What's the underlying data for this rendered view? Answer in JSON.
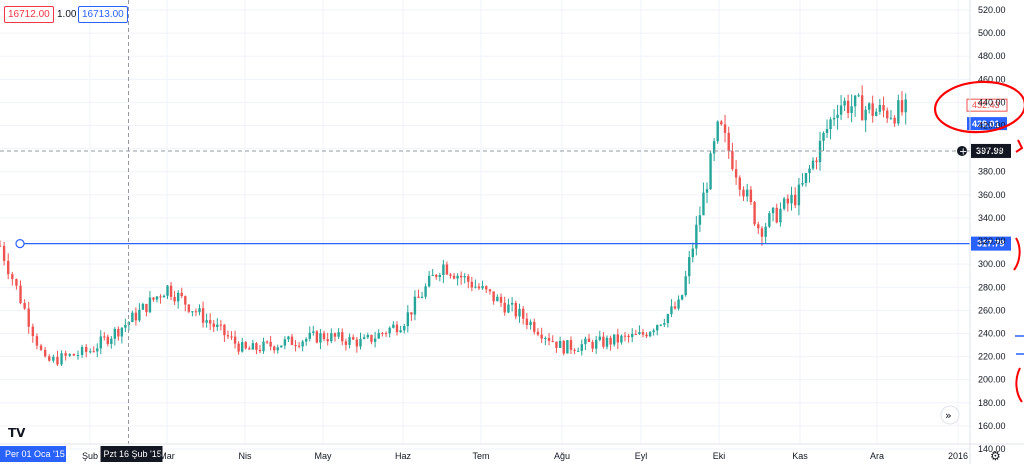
{
  "header": {
    "bid": "16712.00",
    "spread": "1.00",
    "ask": "16713.00"
  },
  "chart_data": {
    "type": "candlestick",
    "ylim": [
      130,
      530
    ],
    "y_ticks": [
      "520.00",
      "500.00",
      "480.00",
      "460.00",
      "440.00",
      "420.00",
      "400.00",
      "380.00",
      "360.00",
      "340.00",
      "320.00",
      "300.00",
      "280.00",
      "260.00",
      "240.00",
      "220.00",
      "200.00",
      "180.00",
      "160.00",
      "140.00"
    ],
    "x_tick_labels": [
      "Şub",
      "Mar",
      "Nis",
      "May",
      "Haz",
      "Tem",
      "Ağu",
      "Eyl",
      "Eki",
      "Kas",
      "Ara",
      "2016"
    ],
    "x_tick_months": [
      1,
      2,
      3,
      4,
      5,
      6,
      7,
      8,
      9,
      10,
      11,
      12
    ],
    "series_monthly_close": [
      {
        "month": 0.0,
        "price": 316
      },
      {
        "month": 0.5,
        "price": 215
      },
      {
        "month": 1.0,
        "price": 225
      },
      {
        "month": 1.5,
        "price": 250
      },
      {
        "month": 2.0,
        "price": 280
      },
      {
        "month": 2.5,
        "price": 252
      },
      {
        "month": 3.0,
        "price": 225
      },
      {
        "month": 3.5,
        "price": 232
      },
      {
        "month": 4.0,
        "price": 238
      },
      {
        "month": 4.5,
        "price": 232
      },
      {
        "month": 5.0,
        "price": 250
      },
      {
        "month": 5.5,
        "price": 300
      },
      {
        "month": 6.0,
        "price": 278
      },
      {
        "month": 6.5,
        "price": 255
      },
      {
        "month": 7.0,
        "price": 228
      },
      {
        "month": 7.5,
        "price": 232
      },
      {
        "month": 8.0,
        "price": 238
      },
      {
        "month": 8.5,
        "price": 265
      },
      {
        "month": 9.0,
        "price": 420
      },
      {
        "month": 9.5,
        "price": 330
      },
      {
        "month": 10.0,
        "price": 362
      },
      {
        "month": 10.5,
        "price": 440
      },
      {
        "month": 11.0,
        "price": 432
      }
    ],
    "horizontal_line": {
      "price": 317.79,
      "label": "317.79",
      "color": "#2962ff"
    },
    "crosshair_price": "397.99",
    "crosshair_date": "Pzt 16 Şub '15",
    "start_date_label": "Per 01 Oca '15",
    "last_price_red": "432.43",
    "last_price_blue": "429.01",
    "up_color": "#26a69a",
    "down_color": "#ef5350",
    "annotation_color": "#ff0000"
  }
}
